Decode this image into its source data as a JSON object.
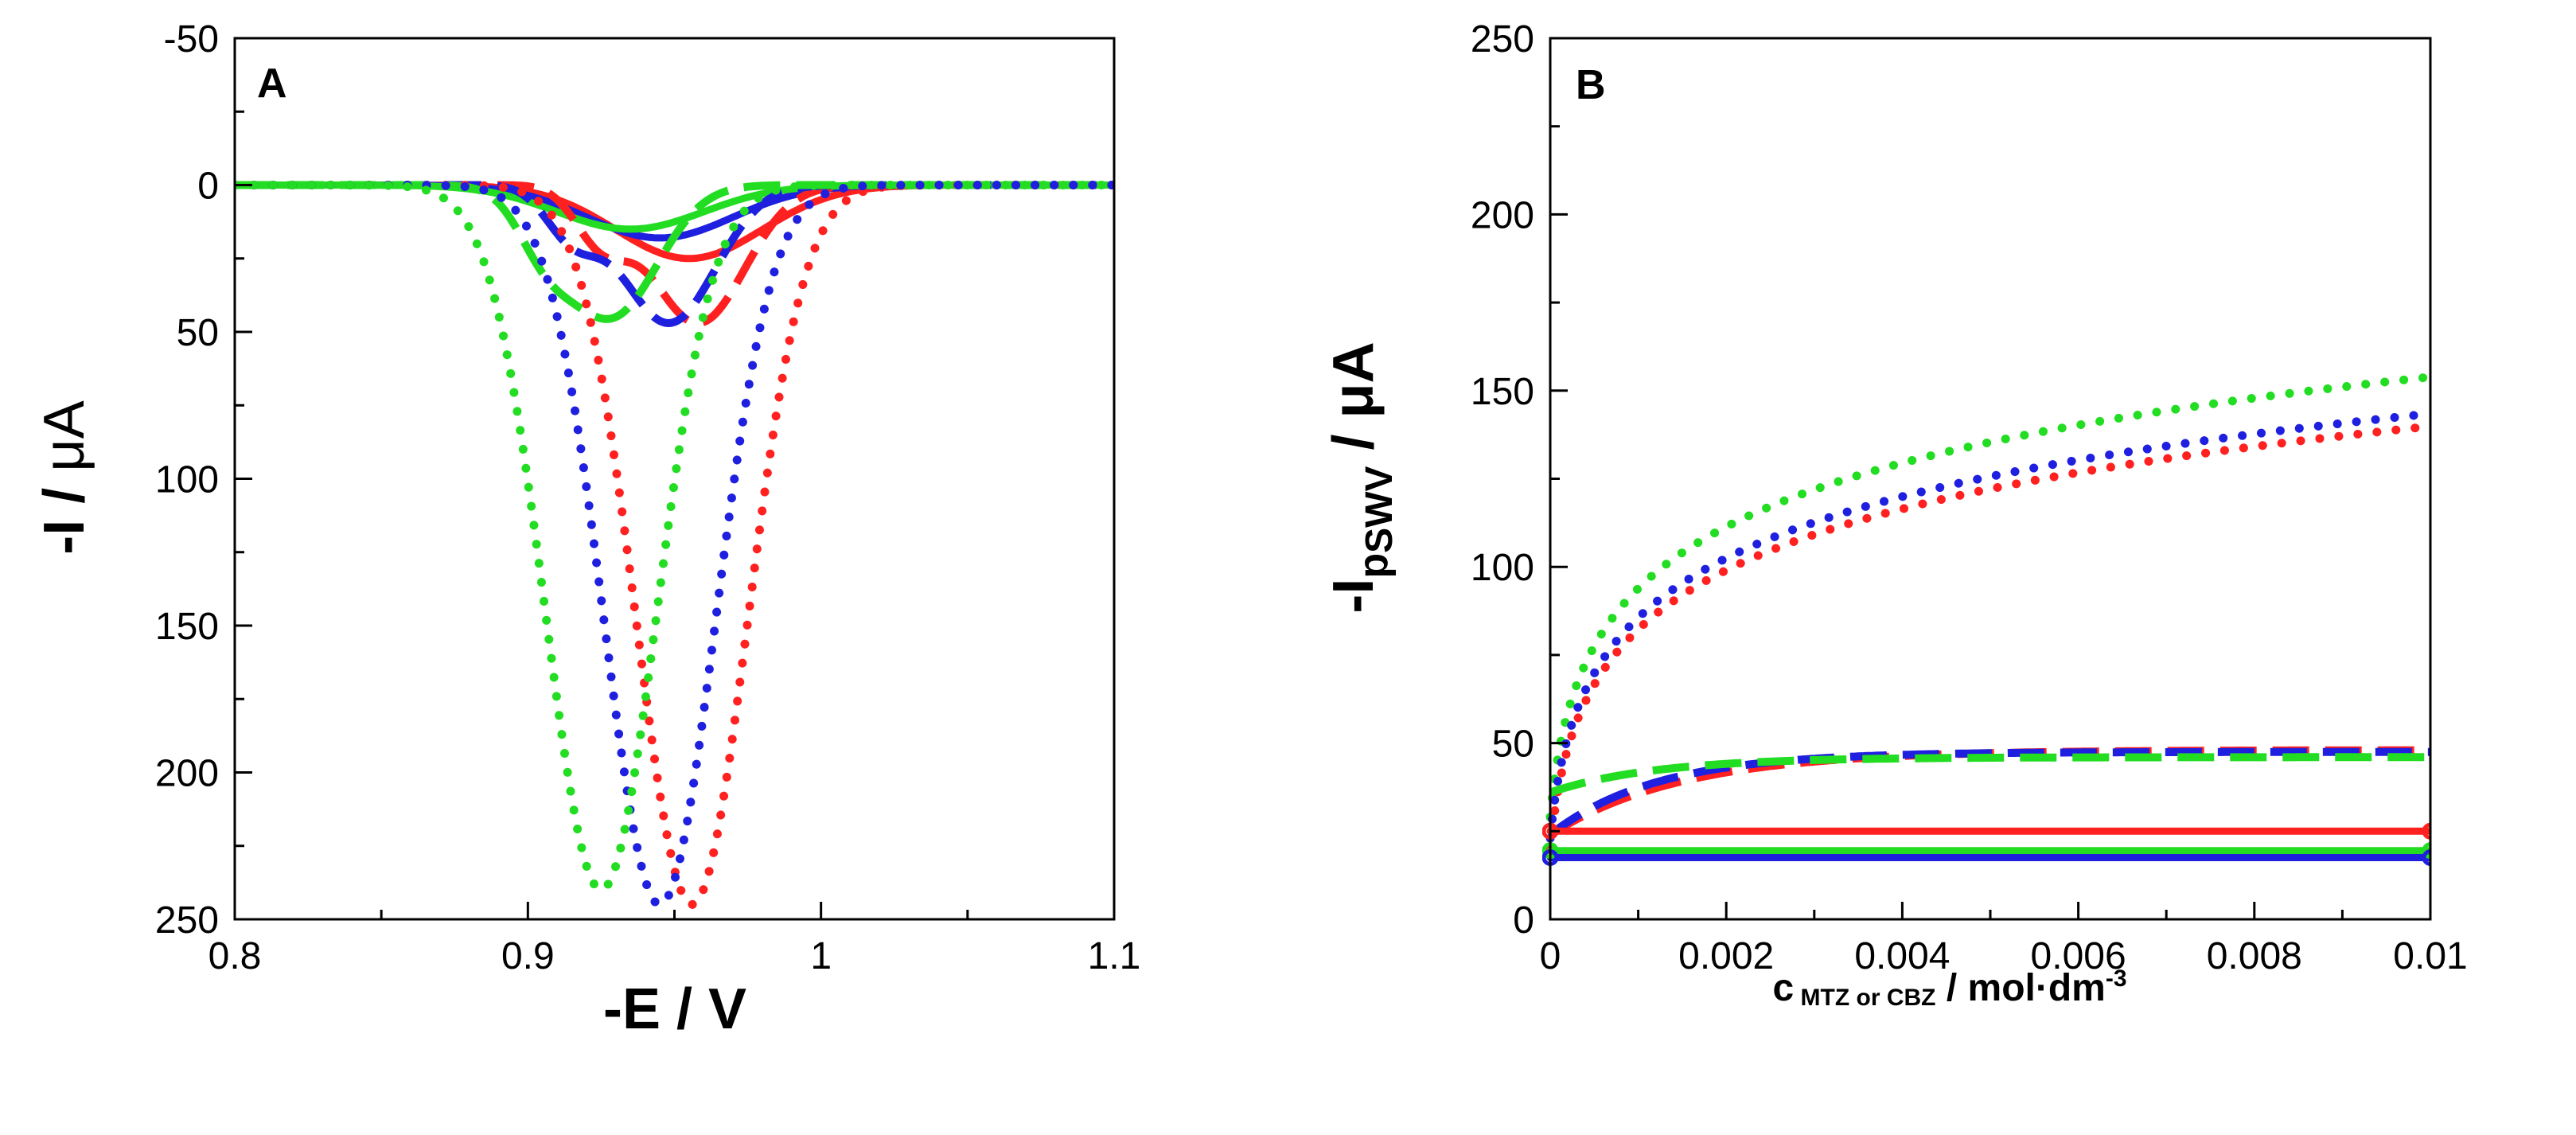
{
  "chart_data": [
    {
      "panel": "A",
      "type": "line",
      "xlabel": "-E / V",
      "ylabel_main": "-I / ",
      "ylabel_unit": "μA",
      "xlim": [
        0.8,
        1.1
      ],
      "ylim": [
        -50,
        250
      ],
      "y_inverted": true,
      "x_ticks": [
        0.8,
        0.9,
        1.0,
        1.1
      ],
      "x_tick_labels": [
        "0.8",
        "0.9",
        "1",
        "1.1"
      ],
      "y_ticks": [
        -50,
        0,
        50,
        100,
        150,
        200,
        250
      ],
      "y_tick_labels": [
        "-50",
        "0",
        "50",
        "100",
        "150",
        "200",
        "250"
      ],
      "series": [
        {
          "name": "red solid",
          "color": "#ff2020",
          "style": "solid",
          "peaks": [
            {
              "x0": 0.955,
              "depth": 25,
              "sigma": 0.025
            }
          ]
        },
        {
          "name": "blue solid",
          "color": "#1f1fe0",
          "style": "solid",
          "peaks": [
            {
              "x0": 0.945,
              "depth": 18,
              "sigma": 0.025
            }
          ]
        },
        {
          "name": "green solid",
          "color": "#22dd22",
          "style": "solid",
          "peaks": [
            {
              "x0": 0.935,
              "depth": 15,
              "sigma": 0.025
            }
          ]
        },
        {
          "name": "red dashed",
          "color": "#ff2020",
          "style": "dashed",
          "peaks": [
            {
              "x0": 0.925,
              "depth": 18,
              "sigma": 0.009
            },
            {
              "x0": 0.958,
              "depth": 47,
              "sigma": 0.016
            }
          ]
        },
        {
          "name": "blue dashed",
          "color": "#1f1fe0",
          "style": "dashed",
          "peaks": [
            {
              "x0": 0.915,
              "depth": 16,
              "sigma": 0.009
            },
            {
              "x0": 0.948,
              "depth": 47,
              "sigma": 0.016
            }
          ]
        },
        {
          "name": "green dashed",
          "color": "#22dd22",
          "style": "dashed",
          "peaks": [
            {
              "x0": 0.905,
              "depth": 14,
              "sigma": 0.009
            },
            {
              "x0": 0.928,
              "depth": 45,
              "sigma": 0.016
            }
          ]
        },
        {
          "name": "red dotted",
          "color": "#ff2020",
          "style": "dotted",
          "peaks": [
            {
              "x0": 0.956,
              "depth": 245,
              "sigma": 0.019
            }
          ]
        },
        {
          "name": "blue dotted",
          "color": "#1f1fe0",
          "style": "dotted",
          "peaks": [
            {
              "x0": 0.945,
              "depth": 245,
              "sigma": 0.019
            }
          ]
        },
        {
          "name": "green dotted",
          "color": "#22dd22",
          "style": "dotted",
          "peaks": [
            {
              "x0": 0.925,
              "depth": 240,
              "sigma": 0.019
            }
          ]
        }
      ]
    },
    {
      "panel": "B",
      "type": "line",
      "xlabel_c": "c",
      "xlabel_sub": " MTZ or CBZ",
      "xlabel_unit": " / mol·dm",
      "xlabel_sup": "-3",
      "ylabel_main": "-I",
      "ylabel_sub": "p",
      "ylabel_subsub": "SWV",
      "ylabel_unit": " / μA",
      "xlim": [
        0,
        0.01
      ],
      "ylim": [
        0,
        250
      ],
      "x_ticks": [
        0,
        0.002,
        0.004,
        0.006,
        0.008,
        0.01
      ],
      "x_tick_labels": [
        "0",
        "0.002",
        "0.004",
        "0.006",
        "0.008",
        "0.01"
      ],
      "y_ticks": [
        0,
        50,
        100,
        150,
        200,
        250
      ],
      "y_tick_labels": [
        "0",
        "50",
        "100",
        "150",
        "200",
        "250"
      ],
      "series": [
        {
          "name": "green dotted",
          "color": "#22dd22",
          "style": "dotted",
          "model": "log",
          "a": 29,
          "b": 62.3,
          "c0": 0.0001
        },
        {
          "name": "blue dotted",
          "color": "#1f1fe0",
          "style": "dotted",
          "model": "log",
          "a": 23,
          "b": 60.1,
          "c0": 0.0001
        },
        {
          "name": "red dotted",
          "color": "#ff2020",
          "style": "dotted",
          "model": "log",
          "a": 20,
          "b": 59.8,
          "c0": 0.0001
        },
        {
          "name": "red dashed",
          "color": "#ff2020",
          "style": "dashed",
          "model": "sat",
          "start": 24,
          "plateau": 48,
          "k": 0.0015
        },
        {
          "name": "blue dashed",
          "color": "#1f1fe0",
          "style": "dashed",
          "model": "sat",
          "start": 24,
          "plateau": 47.5,
          "k": 0.0012
        },
        {
          "name": "green dashed",
          "color": "#22dd22",
          "style": "dashed",
          "model": "sat",
          "start": 36,
          "plateau": 46,
          "k": 0.0012
        },
        {
          "name": "red solid",
          "color": "#ff2020",
          "style": "solid",
          "model": "const",
          "value": 25
        },
        {
          "name": "green solid",
          "color": "#22dd22",
          "style": "solid",
          "model": "const",
          "value": 19.5
        },
        {
          "name": "blue solid",
          "color": "#1f1fe0",
          "style": "solid",
          "model": "const",
          "value": 17.5
        }
      ]
    }
  ]
}
